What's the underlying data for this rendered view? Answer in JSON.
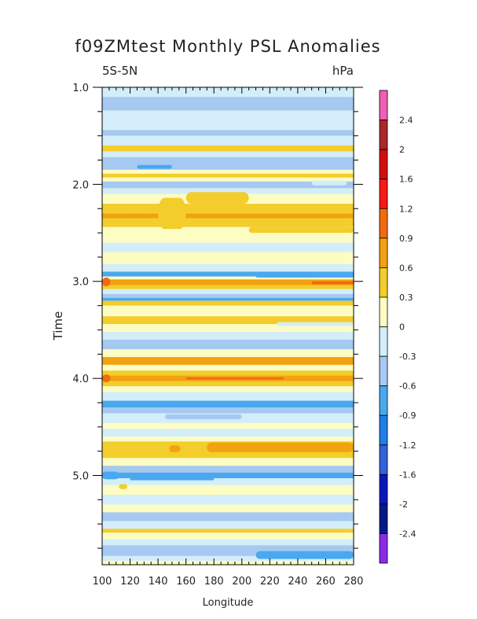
{
  "chart_data": {
    "type": "heatmap",
    "title": "f09ZMtest Monthly PSL Anomalies",
    "left_subtitle": "5S-5N",
    "right_subtitle": "hPa",
    "xlabel": "Longitude",
    "ylabel": "Time",
    "xlim": [
      100,
      280
    ],
    "ylim": [
      1.0,
      5.92
    ],
    "x_ticks": [
      "100",
      "120",
      "140",
      "160",
      "180",
      "200",
      "220",
      "240",
      "260",
      "280"
    ],
    "x_tick_values": [
      100,
      120,
      140,
      160,
      180,
      200,
      220,
      240,
      260,
      280
    ],
    "y_ticks": [
      "1.0",
      "2.0",
      "3.0",
      "4.0",
      "5.0"
    ],
    "y_tick_values": [
      1.0,
      2.0,
      3.0,
      4.0,
      5.0
    ],
    "colorbar": {
      "labels": [
        "2.4",
        "2",
        "1.6",
        "1.2",
        "0.9",
        "0.6",
        "0.3",
        "0",
        "-0.3",
        "-0.6",
        "-0.9",
        "-1.2",
        "-1.6",
        "-2",
        "-2.4"
      ],
      "colors": [
        "#f05fb4",
        "#a82a28",
        "#d30d0d",
        "#f81818",
        "#f26a0e",
        "#f2a20f",
        "#f3cd2c",
        "#fdfcc3",
        "#d3eef9",
        "#a6c9f2",
        "#4aa8f0",
        "#1f7fe6",
        "#3261d8",
        "#0a17bd",
        "#061a85",
        "#8c2ae8"
      ]
    },
    "levels": {
      "n3": "#4aa8f0",
      "n2": "#a6c9f2",
      "n1": "#d3eef9",
      "p1": "#fdfcc3",
      "p2": "#f3cd2c",
      "p3": "#f2a20f",
      "p4": "#f26a0e"
    },
    "background_level": "p1",
    "bands": [
      {
        "t0": 1.0,
        "t1": 1.1,
        "level": "n1"
      },
      {
        "t0": 1.1,
        "t1": 1.24,
        "level": "n2"
      },
      {
        "t0": 1.24,
        "t1": 1.44,
        "level": "n1"
      },
      {
        "t0": 1.44,
        "t1": 1.5,
        "level": "n2"
      },
      {
        "t0": 1.5,
        "t1": 1.6,
        "level": "n1"
      },
      {
        "t0": 1.6,
        "t1": 1.66,
        "level": "p2"
      },
      {
        "t0": 1.66,
        "t1": 1.72,
        "level": "n1"
      },
      {
        "t0": 1.72,
        "t1": 1.85,
        "level": "n2"
      },
      {
        "t0": 1.85,
        "t1": 1.89,
        "level": "p1"
      },
      {
        "t0": 1.89,
        "t1": 1.93,
        "level": "p2"
      },
      {
        "t0": 1.93,
        "t1": 1.97,
        "level": "p1"
      },
      {
        "t0": 1.97,
        "t1": 2.04,
        "level": "n2"
      },
      {
        "t0": 2.04,
        "t1": 2.1,
        "level": "n1"
      },
      {
        "t0": 2.1,
        "t1": 2.2,
        "level": "p1"
      },
      {
        "t0": 2.2,
        "t1": 2.3,
        "level": "p2"
      },
      {
        "t0": 2.3,
        "t1": 2.35,
        "level": "p3"
      },
      {
        "t0": 2.35,
        "t1": 2.44,
        "level": "p2"
      },
      {
        "t0": 2.44,
        "t1": 2.6,
        "level": "p1"
      },
      {
        "t0": 2.6,
        "t1": 2.7,
        "level": "n1"
      },
      {
        "t0": 2.7,
        "t1": 2.82,
        "level": "p1"
      },
      {
        "t0": 2.82,
        "t1": 2.9,
        "level": "n1"
      },
      {
        "t0": 2.9,
        "t1": 2.95,
        "level": "n3"
      },
      {
        "t0": 2.95,
        "t1": 2.98,
        "level": "p1"
      },
      {
        "t0": 2.98,
        "t1": 3.04,
        "level": "p3"
      },
      {
        "t0": 3.04,
        "t1": 3.08,
        "level": "p2"
      },
      {
        "t0": 3.08,
        "t1": 3.13,
        "level": "n1"
      },
      {
        "t0": 3.13,
        "t1": 3.17,
        "level": "n2"
      },
      {
        "t0": 3.17,
        "t1": 3.2,
        "level": "n3"
      },
      {
        "t0": 3.2,
        "t1": 3.25,
        "level": "p2"
      },
      {
        "t0": 3.25,
        "t1": 3.36,
        "level": "p1"
      },
      {
        "t0": 3.36,
        "t1": 3.44,
        "level": "p2"
      },
      {
        "t0": 3.44,
        "t1": 3.52,
        "level": "p1"
      },
      {
        "t0": 3.52,
        "t1": 3.6,
        "level": "n1"
      },
      {
        "t0": 3.6,
        "t1": 3.7,
        "level": "n2"
      },
      {
        "t0": 3.7,
        "t1": 3.78,
        "level": "p1"
      },
      {
        "t0": 3.78,
        "t1": 3.86,
        "level": "p3"
      },
      {
        "t0": 3.86,
        "t1": 3.92,
        "level": "p1"
      },
      {
        "t0": 3.92,
        "t1": 3.97,
        "level": "p2"
      },
      {
        "t0": 3.97,
        "t1": 4.03,
        "level": "p3"
      },
      {
        "t0": 4.03,
        "t1": 4.08,
        "level": "p2"
      },
      {
        "t0": 4.08,
        "t1": 4.14,
        "level": "p1"
      },
      {
        "t0": 4.14,
        "t1": 4.23,
        "level": "n1"
      },
      {
        "t0": 4.23,
        "t1": 4.3,
        "level": "n3"
      },
      {
        "t0": 4.3,
        "t1": 4.36,
        "level": "n2"
      },
      {
        "t0": 4.36,
        "t1": 4.46,
        "level": "n1"
      },
      {
        "t0": 4.46,
        "t1": 4.52,
        "level": "p1"
      },
      {
        "t0": 4.52,
        "t1": 4.6,
        "level": "n1"
      },
      {
        "t0": 4.6,
        "t1": 4.65,
        "level": "p1"
      },
      {
        "t0": 4.65,
        "t1": 4.82,
        "level": "p2"
      },
      {
        "t0": 4.82,
        "t1": 4.9,
        "level": "p1"
      },
      {
        "t0": 4.9,
        "t1": 4.97,
        "level": "n2"
      },
      {
        "t0": 4.97,
        "t1": 5.03,
        "level": "n3"
      },
      {
        "t0": 5.03,
        "t1": 5.1,
        "level": "n1"
      },
      {
        "t0": 5.1,
        "t1": 5.2,
        "level": "p1"
      },
      {
        "t0": 5.2,
        "t1": 5.3,
        "level": "n1"
      },
      {
        "t0": 5.3,
        "t1": 5.38,
        "level": "p1"
      },
      {
        "t0": 5.38,
        "t1": 5.47,
        "level": "n2"
      },
      {
        "t0": 5.47,
        "t1": 5.55,
        "level": "n1"
      },
      {
        "t0": 5.55,
        "t1": 5.59,
        "level": "p2"
      },
      {
        "t0": 5.59,
        "t1": 5.66,
        "level": "p1"
      },
      {
        "t0": 5.66,
        "t1": 5.72,
        "level": "n1"
      },
      {
        "t0": 5.72,
        "t1": 5.83,
        "level": "n2"
      },
      {
        "t0": 5.83,
        "t1": 5.88,
        "level": "n1"
      },
      {
        "t0": 5.88,
        "t1": 5.92,
        "level": "p1"
      }
    ],
    "patches": [
      {
        "lon0": 100,
        "lon1": 106,
        "t0": 2.96,
        "t1": 3.05,
        "level": "p4"
      },
      {
        "lon0": 100,
        "lon1": 106,
        "t0": 3.96,
        "t1": 4.04,
        "level": "p4"
      },
      {
        "lon0": 100,
        "lon1": 112,
        "t0": 4.96,
        "t1": 5.04,
        "level": "n3"
      },
      {
        "lon0": 118,
        "lon1": 134,
        "t0": 2.3,
        "t1": 2.35,
        "level": "p3"
      },
      {
        "lon0": 140,
        "lon1": 160,
        "t0": 2.14,
        "t1": 2.46,
        "level": "p2"
      },
      {
        "lon0": 160,
        "lon1": 205,
        "t0": 2.08,
        "t1": 2.2,
        "level": "p2"
      },
      {
        "lon0": 205,
        "lon1": 280,
        "t0": 2.44,
        "t1": 2.5,
        "level": "p2"
      },
      {
        "lon0": 175,
        "lon1": 280,
        "t0": 4.66,
        "t1": 4.76,
        "level": "p3"
      },
      {
        "lon0": 148,
        "lon1": 156,
        "t0": 4.69,
        "t1": 4.76,
        "level": "p3"
      },
      {
        "lon0": 125,
        "lon1": 150,
        "t0": 1.8,
        "t1": 1.84,
        "level": "n3"
      },
      {
        "lon0": 210,
        "lon1": 280,
        "t0": 2.93,
        "t1": 2.96,
        "level": "n3"
      },
      {
        "lon0": 250,
        "lon1": 280,
        "t0": 3.0,
        "t1": 3.03,
        "level": "p4"
      },
      {
        "lon0": 250,
        "lon1": 275,
        "t0": 1.96,
        "t1": 2.01,
        "level": "n1"
      },
      {
        "lon0": 210,
        "lon1": 280,
        "t0": 5.78,
        "t1": 5.86,
        "level": "n3"
      },
      {
        "lon0": 120,
        "lon1": 180,
        "t0": 5.02,
        "t1": 5.05,
        "level": "n3"
      },
      {
        "lon0": 112,
        "lon1": 118,
        "t0": 5.09,
        "t1": 5.14,
        "level": "p2"
      },
      {
        "lon0": 265,
        "lon1": 280,
        "t0": 5.38,
        "t1": 5.46,
        "level": "n2"
      },
      {
        "lon0": 145,
        "lon1": 200,
        "t0": 4.37,
        "t1": 4.42,
        "level": "n2"
      },
      {
        "lon0": 225,
        "lon1": 280,
        "t0": 3.42,
        "t1": 3.46,
        "level": "n1"
      },
      {
        "lon0": 160,
        "lon1": 230,
        "t0": 3.99,
        "t1": 4.01,
        "level": "p4"
      }
    ]
  }
}
